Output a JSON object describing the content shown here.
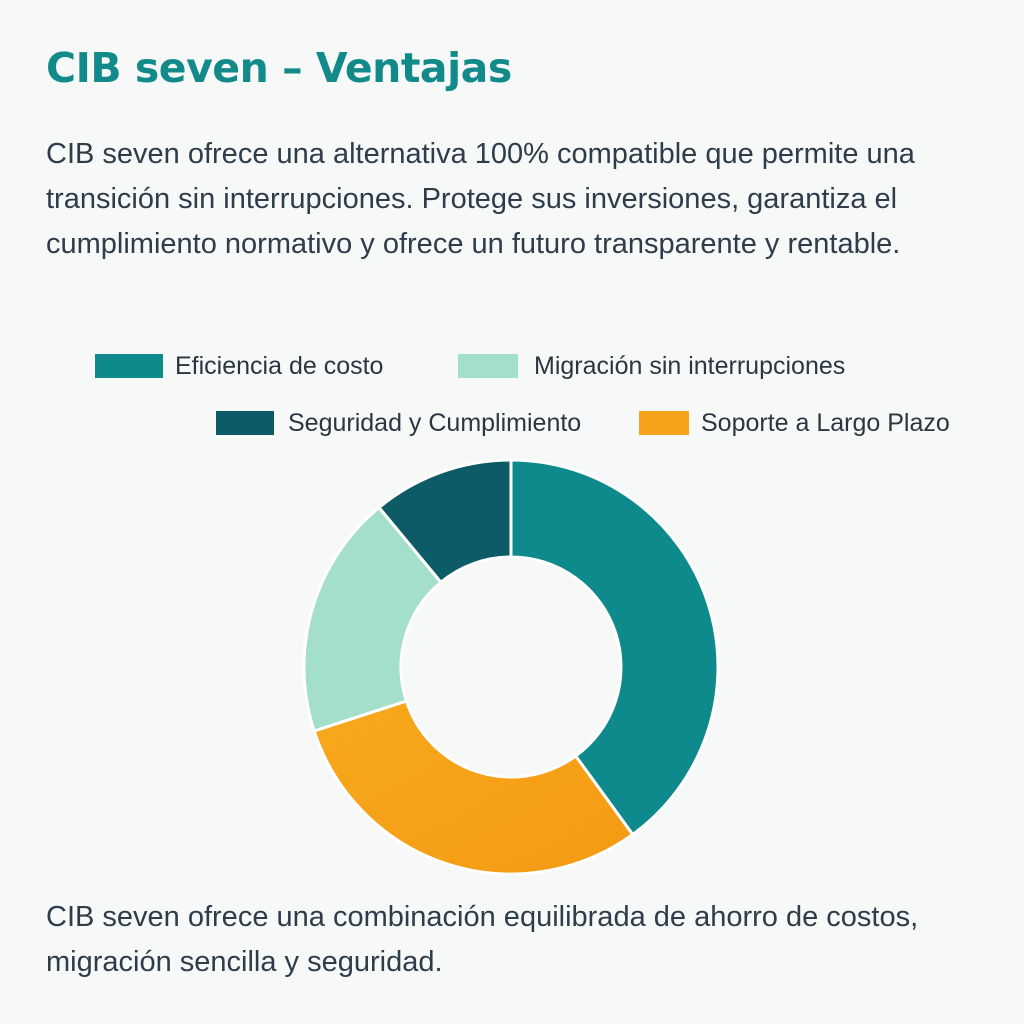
{
  "page": {
    "title": "CIB seven – Ventajas",
    "intro": "CIB seven ofrece una alternativa 100% compatible que permite una transición sin interrupciones. Protege sus inversiones, garantiza el cumplimiento normativo y ofrece un futuro transparente y rentable.",
    "footnote": "CIB seven ofrece una combinación equilibrada de ahorro de costos, migración sencilla y seguridad."
  },
  "chart_data": {
    "type": "pie",
    "donut": true,
    "legend_position": "top",
    "slices": [
      {
        "name": "Eficiencia de costo",
        "value": 40,
        "color": "#0e8a8c"
      },
      {
        "name": "Soporte a Largo Plazo",
        "value": 30,
        "color": "#f6a21a"
      },
      {
        "name": "Migración sin interrupciones",
        "value": 19,
        "color": "#a3dfca"
      },
      {
        "name": "Seguridad y Cumplimiento",
        "value": 11,
        "color": "#0d5b66"
      }
    ],
    "legend_rows": [
      [
        "Eficiencia de costo",
        "Migración sin interrupciones"
      ],
      [
        "Seguridad y Cumplimiento",
        "Soporte a Largo Plazo"
      ]
    ]
  }
}
